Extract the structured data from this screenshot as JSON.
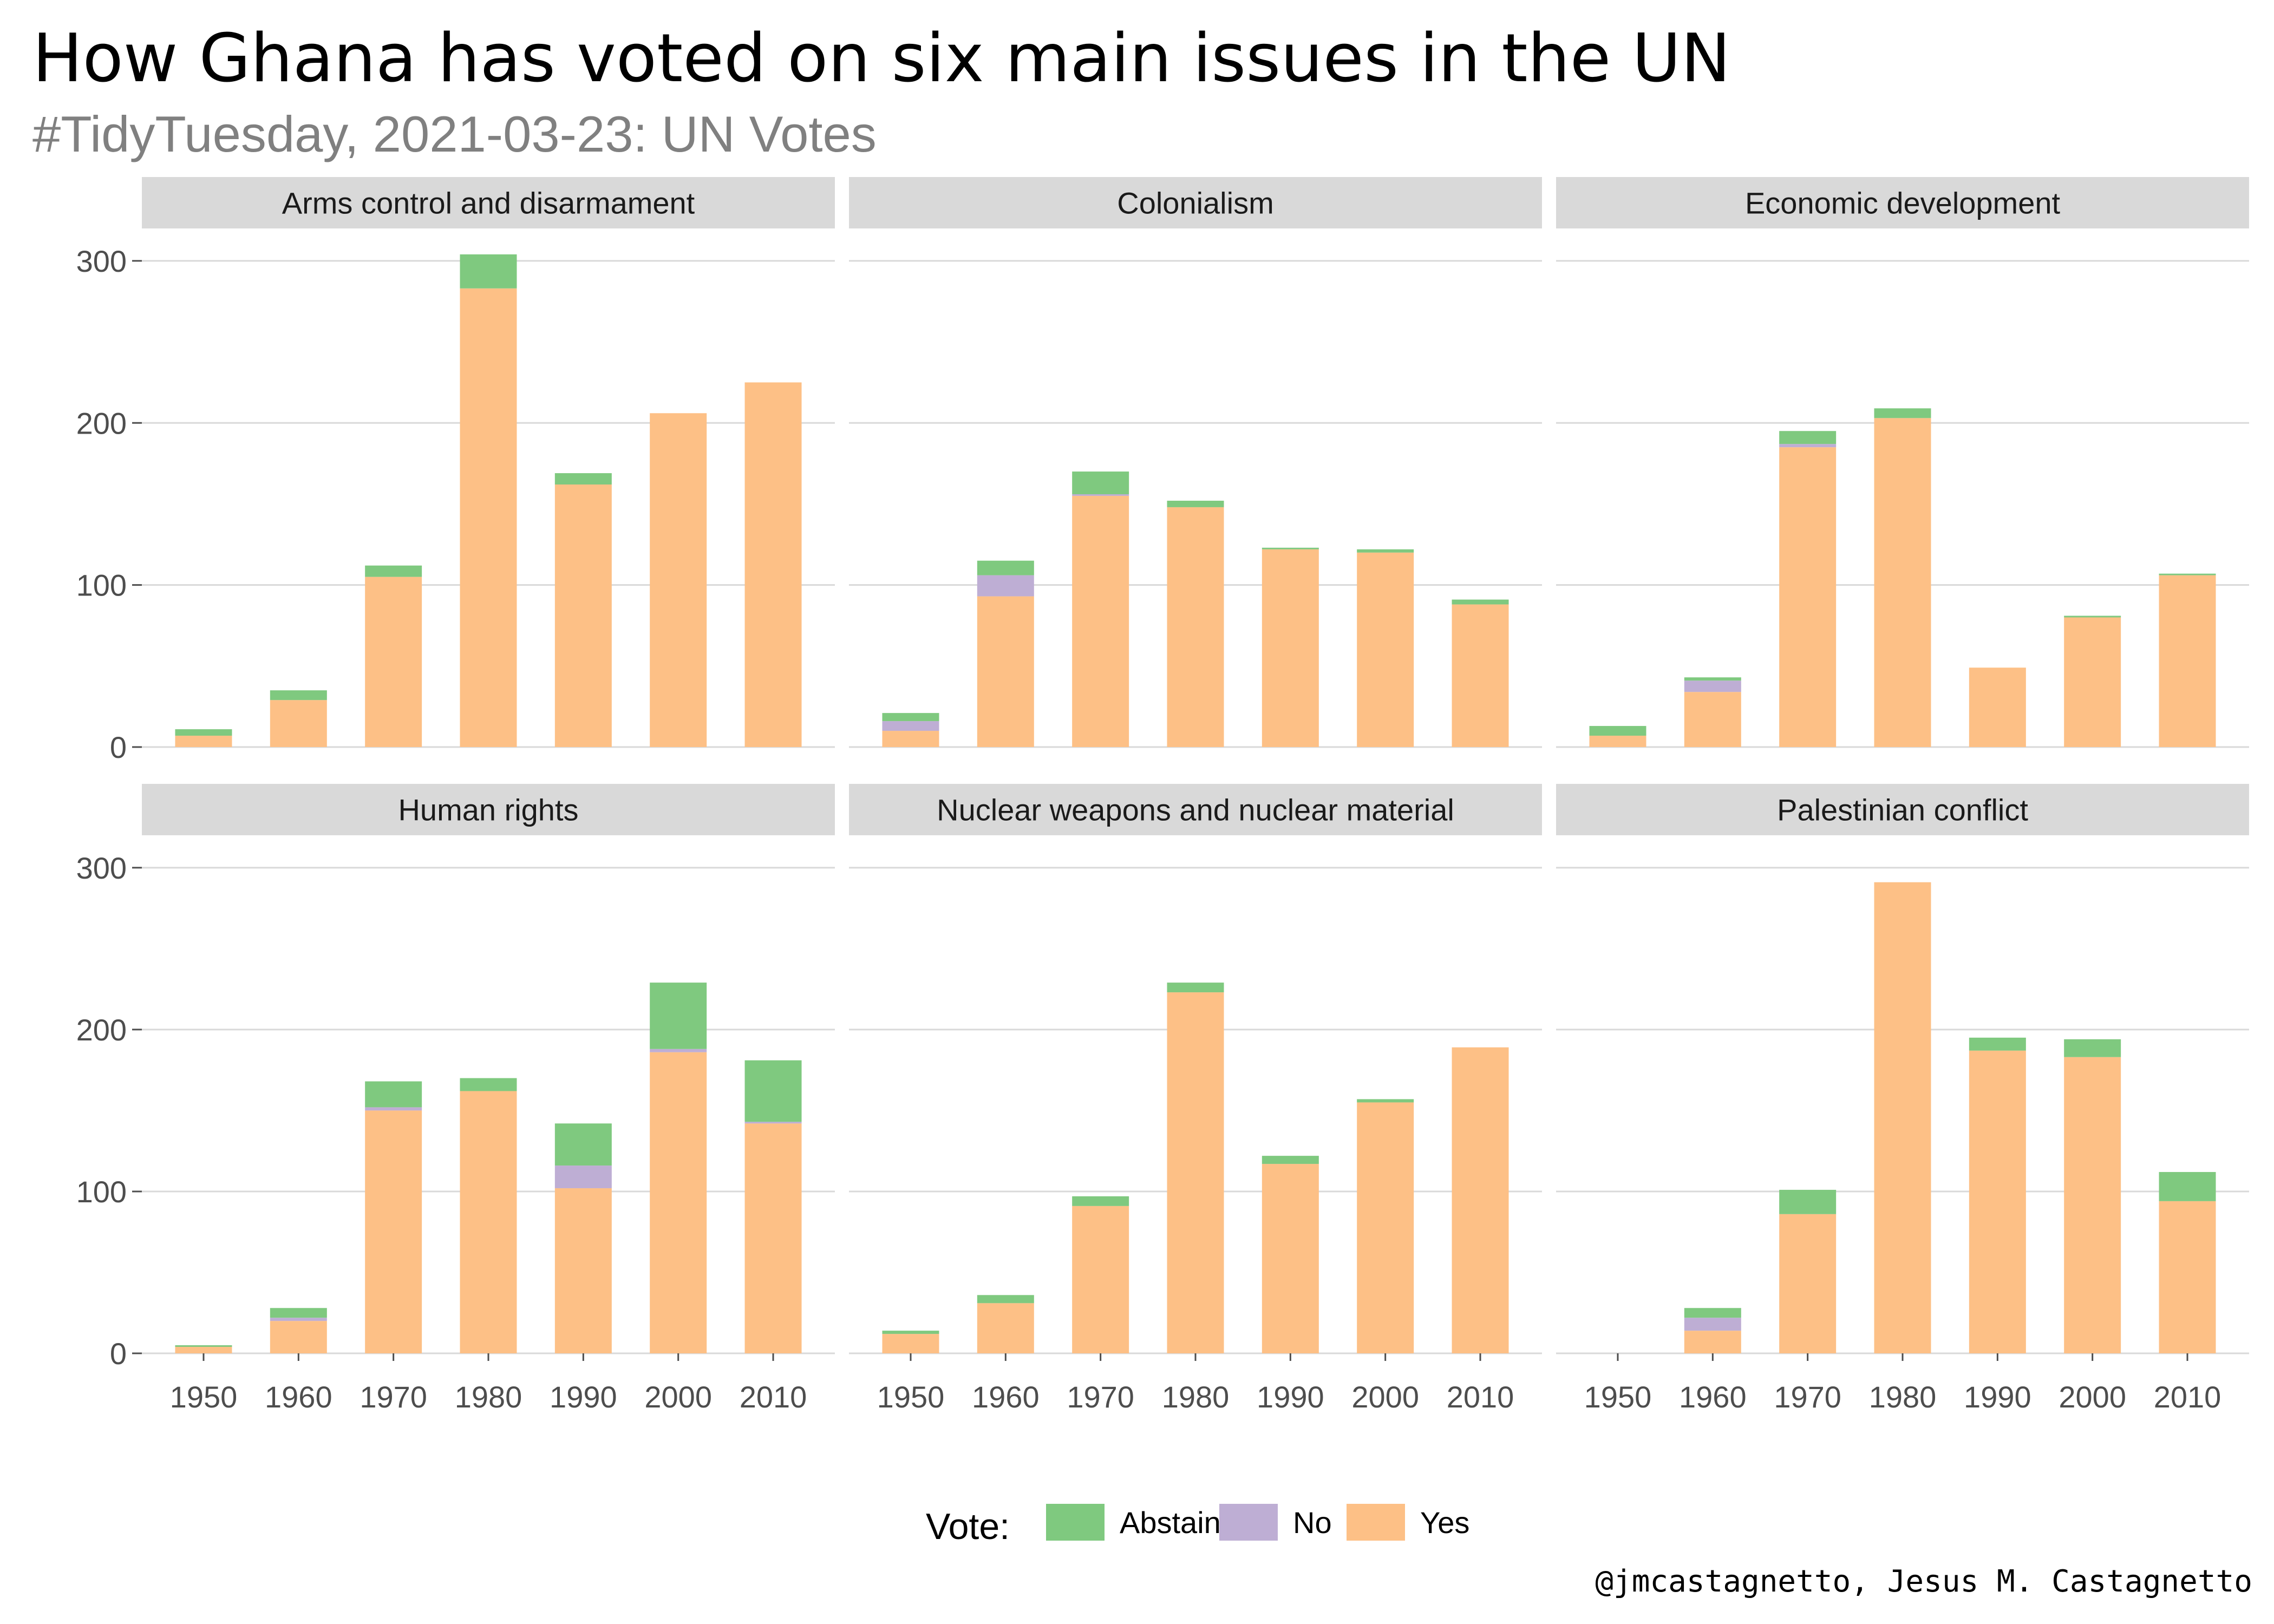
{
  "title": "How Ghana has voted on six main issues in the UN",
  "subtitle": "#TidyTuesday, 2021-03-23: UN Votes",
  "caption": "@jmcastagnetto, Jesus M. Castagnetto",
  "legend": {
    "title": "Vote:",
    "items": [
      {
        "label": "Abstain",
        "color": "#7fc97f"
      },
      {
        "label": "No",
        "color": "#beaed4"
      },
      {
        "label": "Yes",
        "color": "#fdc086"
      }
    ]
  },
  "chart_data": {
    "type": "bar",
    "stacked": true,
    "facet_layout": "2x3",
    "categories": [
      "1950",
      "1960",
      "1970",
      "1980",
      "1990",
      "2000",
      "2010"
    ],
    "ylim": [
      0,
      320
    ],
    "yticks": [
      0,
      100,
      200,
      300
    ],
    "grid": true,
    "legend_position": "bottom",
    "stack_order": [
      "Yes",
      "No",
      "Abstain"
    ],
    "panels": [
      {
        "name": "Arms control and disarmament",
        "series": [
          {
            "name": "Yes",
            "values": [
              7,
              29,
              105,
              283,
              162,
              206,
              225
            ]
          },
          {
            "name": "No",
            "values": [
              0,
              0,
              0,
              0,
              0,
              0,
              0
            ]
          },
          {
            "name": "Abstain",
            "values": [
              4,
              6,
              7,
              21,
              7,
              0,
              0
            ]
          }
        ]
      },
      {
        "name": "Colonialism",
        "series": [
          {
            "name": "Yes",
            "values": [
              10,
              93,
              155,
              148,
              122,
              120,
              88
            ]
          },
          {
            "name": "No",
            "values": [
              6,
              13,
              1,
              0,
              0,
              0,
              0
            ]
          },
          {
            "name": "Abstain",
            "values": [
              5,
              9,
              14,
              4,
              1,
              2,
              3
            ]
          }
        ]
      },
      {
        "name": "Economic development",
        "series": [
          {
            "name": "Yes",
            "values": [
              7,
              34,
              185,
              203,
              49,
              80,
              106
            ]
          },
          {
            "name": "No",
            "values": [
              0,
              7,
              2,
              0,
              0,
              0,
              0
            ]
          },
          {
            "name": "Abstain",
            "values": [
              6,
              2,
              8,
              6,
              0,
              1,
              1
            ]
          }
        ]
      },
      {
        "name": "Human rights",
        "series": [
          {
            "name": "Yes",
            "values": [
              4,
              20,
              150,
              162,
              102,
              186,
              142
            ]
          },
          {
            "name": "No",
            "values": [
              0,
              2,
              2,
              0,
              14,
              2,
              1
            ]
          },
          {
            "name": "Abstain",
            "values": [
              1,
              6,
              16,
              8,
              26,
              41,
              38
            ]
          }
        ]
      },
      {
        "name": "Nuclear weapons and nuclear material",
        "series": [
          {
            "name": "Yes",
            "values": [
              12,
              31,
              91,
              223,
              117,
              155,
              189
            ]
          },
          {
            "name": "No",
            "values": [
              0,
              0,
              0,
              0,
              0,
              0,
              0
            ]
          },
          {
            "name": "Abstain",
            "values": [
              2,
              5,
              6,
              6,
              5,
              2,
              0
            ]
          }
        ]
      },
      {
        "name": "Palestinian conflict",
        "series": [
          {
            "name": "Yes",
            "values": [
              0,
              14,
              86,
              291,
              187,
              183,
              94
            ]
          },
          {
            "name": "No",
            "values": [
              0,
              8,
              0,
              0,
              0,
              0,
              0
            ]
          },
          {
            "name": "Abstain",
            "values": [
              0,
              6,
              15,
              0,
              8,
              11,
              18
            ]
          }
        ]
      }
    ]
  }
}
